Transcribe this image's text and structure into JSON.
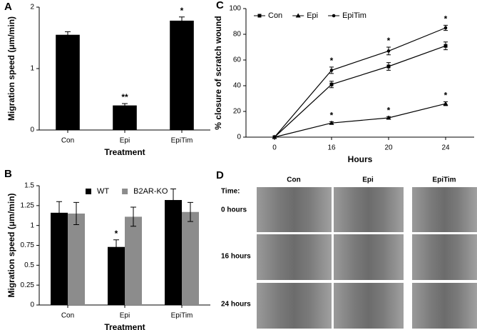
{
  "chart_data": [
    {
      "type": "bar",
      "panel": "A",
      "ylabel": "Migration speed (μm/min)",
      "xlabel": "Treatment",
      "categories": [
        "Con",
        "Epi",
        "EpiTim"
      ],
      "values": [
        1.55,
        0.4,
        1.78
      ],
      "errors": [
        0.05,
        0.03,
        0.06
      ],
      "significance": [
        null,
        "**",
        "*"
      ],
      "color": "#000000",
      "ylim": [
        0,
        2
      ],
      "yticks": [
        0,
        1,
        2
      ]
    },
    {
      "type": "bar",
      "panel": "B",
      "ylabel": "Migration speed (μm/min)",
      "xlabel": "Treatment",
      "categories": [
        "Con",
        "Epi",
        "EpiTim"
      ],
      "series": [
        {
          "name": "WT",
          "color": "#000000",
          "values": [
            1.16,
            0.73,
            1.32
          ],
          "errors": [
            0.14,
            0.09,
            0.14
          ],
          "significance": [
            null,
            "*",
            null
          ]
        },
        {
          "name": "B2AR-KO",
          "color": "#8c8c8c",
          "values": [
            1.15,
            1.11,
            1.17
          ],
          "errors": [
            0.14,
            0.12,
            0.12
          ],
          "significance": [
            null,
            null,
            null
          ]
        }
      ],
      "ylim": [
        0,
        1.5
      ],
      "yticks": [
        0,
        0.25,
        0.5,
        0.75,
        1,
        1.25,
        1.5
      ]
    },
    {
      "type": "line",
      "panel": "C",
      "ylabel": "% closure of scratch wound",
      "xlabel": "Hours",
      "categories": [
        "0",
        "16",
        "20",
        "24"
      ],
      "series": [
        {
          "name": "Con",
          "color": "#000000",
          "marker": "square",
          "values": [
            0,
            41,
            55,
            71
          ],
          "errors": [
            0,
            2.5,
            3,
            3
          ],
          "significance": [
            null,
            null,
            null,
            null
          ]
        },
        {
          "name": "Epi",
          "color": "#000000",
          "marker": "triangle",
          "values": [
            0,
            11,
            15,
            26
          ],
          "errors": [
            0,
            1,
            1,
            1.5
          ],
          "significance": [
            null,
            "*",
            "*",
            "*"
          ]
        },
        {
          "name": "EpiTim",
          "color": "#000000",
          "marker": "circle",
          "values": [
            0,
            52,
            67,
            85
          ],
          "errors": [
            0,
            2.5,
            3,
            2
          ],
          "significance": [
            null,
            "*",
            "*",
            "*"
          ]
        }
      ],
      "ylim": [
        0,
        100
      ],
      "yticks": [
        0,
        20,
        40,
        60,
        80,
        100
      ]
    }
  ],
  "image_panel": {
    "panel": "D",
    "time_label": "Time:",
    "columns": [
      "Con",
      "Epi",
      "EpiTim"
    ],
    "rows": [
      "0 hours",
      "16 hours",
      "24 hours"
    ]
  }
}
